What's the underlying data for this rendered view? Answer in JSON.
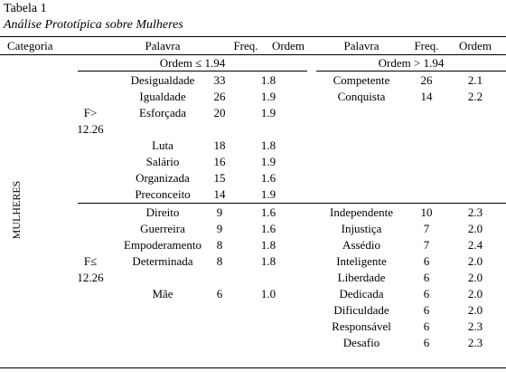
{
  "title": "Tabela 1",
  "subtitle": "Análise Prototípica sobre Mulheres",
  "table": {
    "header": [
      "Categoria",
      "Palavra",
      "Freq.",
      "Ordem",
      "Palavra",
      "Freq.",
      "Ordem"
    ],
    "subheaders": [
      "Ordem ≤ 1.94",
      "Ordem > 1.94"
    ],
    "category": "MULHERES",
    "groups": [
      {
        "label": [
          "F>",
          "12.26"
        ],
        "left": [
          [
            "Desigualdade",
            "33",
            "1.8"
          ],
          [
            "Igualdade",
            "26",
            "1.9"
          ],
          [
            "Esforçada",
            "20",
            "1.9"
          ],
          [
            "Luta",
            "18",
            "1.8"
          ],
          [
            "Salário",
            "16",
            "1.9"
          ],
          [
            "Organizada",
            "15",
            "1.6"
          ],
          [
            "Preconceito",
            "14",
            "1.9"
          ]
        ],
        "right": [
          [
            "Competente",
            "26",
            "2.1"
          ],
          [
            "Conquista",
            "14",
            "2.2"
          ]
        ]
      },
      {
        "label": [
          "F≤",
          "12.26"
        ],
        "left": [
          [
            "Direito",
            "9",
            "1.6"
          ],
          [
            "Guerreira",
            "9",
            "1.6"
          ],
          [
            "Empoderamento",
            "8",
            "1.8"
          ],
          [
            "Determinada",
            "8",
            "1.8"
          ],
          [
            "Mãe",
            "6",
            "1.0"
          ]
        ],
        "right": [
          [
            "Independente",
            "10",
            "2.3"
          ],
          [
            "Injustiça",
            "7",
            "2.0"
          ],
          [
            "Assédio",
            "7",
            "2.4"
          ],
          [
            "Inteligente",
            "6",
            "2.0"
          ],
          [
            "Liberdade",
            "6",
            "2.0"
          ],
          [
            "Dedicada",
            "6",
            "2.0"
          ],
          [
            "Dificuldade",
            "6",
            "2.0"
          ],
          [
            "Responsável",
            "6",
            "2.3"
          ],
          [
            "Desafio",
            "6",
            "2.3"
          ]
        ]
      }
    ]
  }
}
